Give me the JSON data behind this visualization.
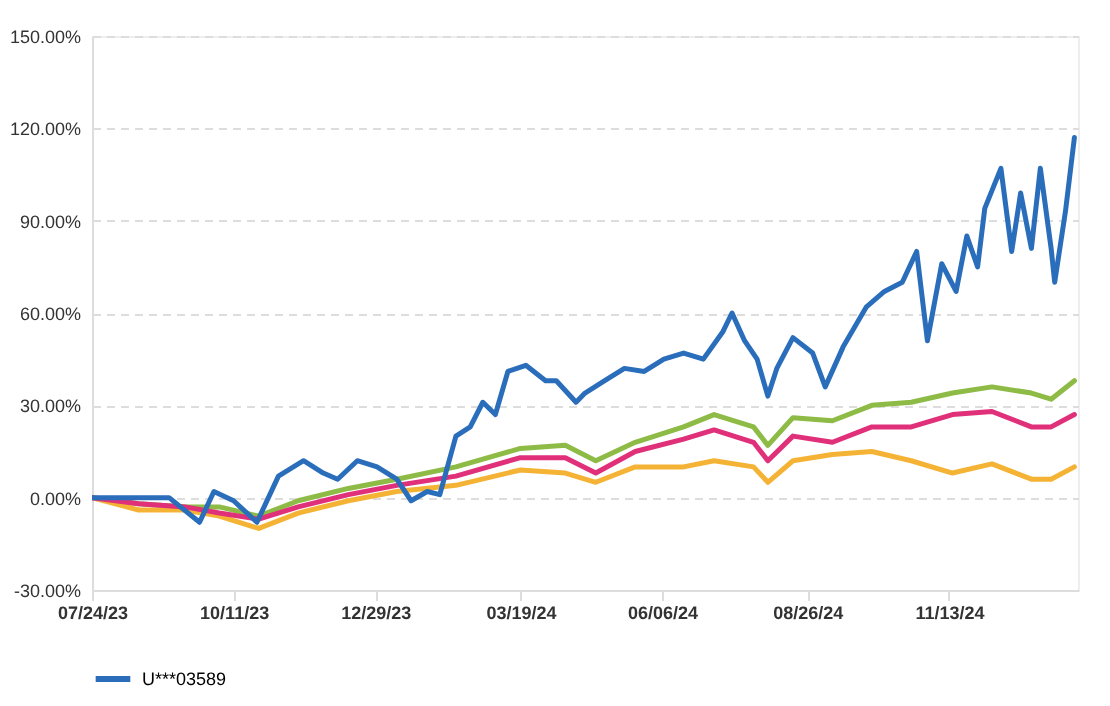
{
  "chart_data": {
    "type": "line",
    "xlim": [
      "2023-07-24",
      "2025-01-24"
    ],
    "xticks": [
      {
        "value": "2023-07-24",
        "label": "07/24/23"
      },
      {
        "value": "2023-10-11",
        "label": "10/11/23"
      },
      {
        "value": "2023-12-29",
        "label": "12/29/23"
      },
      {
        "value": "2024-03-19",
        "label": "03/19/24"
      },
      {
        "value": "2024-06-06",
        "label": "06/06/24"
      },
      {
        "value": "2024-08-26",
        "label": "08/26/24"
      },
      {
        "value": "2024-11-13",
        "label": "11/13/24"
      }
    ],
    "ylim": [
      -30,
      150
    ],
    "yticks": [
      {
        "value": -30,
        "label": "-30.00%"
      },
      {
        "value": 0,
        "label": "0.00%"
      },
      {
        "value": 30,
        "label": "30.00%"
      },
      {
        "value": 60,
        "label": "60.00%"
      },
      {
        "value": 90,
        "label": "90.00%"
      },
      {
        "value": 120,
        "label": "120.00%"
      },
      {
        "value": 150,
        "label": "150.00%"
      }
    ],
    "grid": "y",
    "legend": "bottom",
    "line_style": "solid",
    "marker": "none",
    "series": [
      {
        "color": "#8dbb45",
        "x": [
          "2023-07-24",
          "2023-08-19",
          "2023-09-14",
          "2023-10-03",
          "2023-10-25",
          "2023-11-16",
          "2023-12-14",
          "2024-01-10",
          "2024-02-12",
          "2024-03-19",
          "2024-04-13",
          "2024-04-30",
          "2024-05-22",
          "2024-06-18",
          "2024-07-05",
          "2024-07-27",
          "2024-08-04",
          "2024-08-18",
          "2024-09-09",
          "2024-10-01",
          "2024-10-23",
          "2024-11-15",
          "2024-12-07",
          "2024-12-29",
          "2025-01-09",
          "2025-01-22"
        ],
        "values": [
          0,
          -2,
          -3,
          -3,
          -6,
          -1,
          3,
          6,
          10,
          16,
          17,
          12,
          18,
          23,
          27,
          23,
          17,
          26,
          25,
          30,
          31,
          34,
          36,
          34,
          32,
          38
        ]
      },
      {
        "color": "#f5b335",
        "x": [
          "2023-07-24",
          "2023-08-19",
          "2023-09-14",
          "2023-10-03",
          "2023-10-25",
          "2023-11-16",
          "2023-12-14",
          "2024-01-10",
          "2024-02-12",
          "2024-03-19",
          "2024-04-13",
          "2024-04-30",
          "2024-05-22",
          "2024-06-18",
          "2024-07-05",
          "2024-07-27",
          "2024-08-04",
          "2024-08-18",
          "2024-09-09",
          "2024-10-01",
          "2024-10-23",
          "2024-11-15",
          "2024-12-07",
          "2024-12-29",
          "2025-01-09",
          "2025-01-22"
        ],
        "values": [
          0,
          -4,
          -4,
          -6,
          -10,
          -5,
          -1,
          2,
          4,
          9,
          8,
          5,
          10,
          10,
          12,
          10,
          5,
          12,
          14,
          15,
          12,
          8,
          11,
          6,
          6,
          10
        ]
      },
      {
        "color": "#e0307a",
        "x": [
          "2023-07-24",
          "2023-08-19",
          "2023-09-14",
          "2023-10-03",
          "2023-10-25",
          "2023-11-16",
          "2023-12-14",
          "2024-01-10",
          "2024-02-12",
          "2024-03-19",
          "2024-04-13",
          "2024-04-30",
          "2024-05-22",
          "2024-06-18",
          "2024-07-05",
          "2024-07-27",
          "2024-08-04",
          "2024-08-18",
          "2024-09-09",
          "2024-10-01",
          "2024-10-23",
          "2024-11-15",
          "2024-12-07",
          "2024-12-29",
          "2025-01-09",
          "2025-01-22"
        ],
        "values": [
          0,
          -2,
          -3,
          -5,
          -7,
          -3,
          1,
          4,
          7,
          13,
          13,
          8,
          15,
          19,
          22,
          18,
          12,
          20,
          18,
          23,
          23,
          27,
          28,
          23,
          23,
          27
        ]
      },
      {
        "name": "U***03589",
        "color": "#2a6ebb",
        "x": [
          "2023-07-24",
          "2023-09-05",
          "2023-09-22",
          "2023-09-30",
          "2023-10-11",
          "2023-10-24",
          "2023-11-05",
          "2023-11-19",
          "2023-11-30",
          "2023-12-08",
          "2023-12-19",
          "2023-12-30",
          "2024-01-10",
          "2024-01-18",
          "2024-01-27",
          "2024-02-03",
          "2024-02-12",
          "2024-02-20",
          "2024-02-27",
          "2024-03-05",
          "2024-03-12",
          "2024-03-22",
          "2024-04-02",
          "2024-04-08",
          "2024-04-19",
          "2024-04-24",
          "2024-05-05",
          "2024-05-16",
          "2024-05-27",
          "2024-06-07",
          "2024-06-18",
          "2024-06-29",
          "2024-07-10",
          "2024-07-15",
          "2024-07-22",
          "2024-07-29",
          "2024-08-04",
          "2024-08-09",
          "2024-08-18",
          "2024-08-29",
          "2024-09-05",
          "2024-09-15",
          "2024-09-28",
          "2024-10-08",
          "2024-10-18",
          "2024-10-26",
          "2024-11-01",
          "2024-11-09",
          "2024-11-17",
          "2024-11-23",
          "2024-11-29",
          "2024-12-03",
          "2024-12-12",
          "2024-12-18",
          "2024-12-23",
          "2024-12-29",
          "2025-01-03",
          "2025-01-09",
          "2025-01-11",
          "2025-01-17",
          "2025-01-22"
        ],
        "values": [
          0,
          0,
          -8,
          2,
          -1,
          -8,
          7,
          12,
          8,
          6,
          12,
          10,
          6,
          -1,
          2,
          1,
          20,
          23,
          31,
          27,
          41,
          43,
          38,
          38,
          31,
          34,
          38,
          42,
          41,
          45,
          47,
          45,
          54,
          60,
          51,
          45,
          33,
          42,
          52,
          47,
          36,
          49,
          62,
          67,
          70,
          80,
          51,
          76,
          67,
          85,
          75,
          94,
          107,
          80,
          99,
          81,
          107,
          81,
          70,
          93,
          117
        ]
      }
    ]
  }
}
